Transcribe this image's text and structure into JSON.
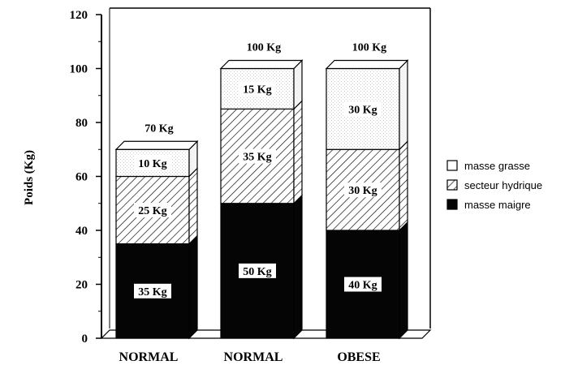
{
  "chart_data": {
    "type": "bar",
    "stacked": true,
    "ylabel": "Poids (Kg)",
    "ylim": [
      0,
      120
    ],
    "yticks": [
      0,
      20,
      40,
      60,
      80,
      100,
      120
    ],
    "categories": [
      "NORMAL",
      "NORMAL",
      "OBESE"
    ],
    "totals": [
      "70 Kg",
      "100 Kg",
      "100 Kg"
    ],
    "series": [
      {
        "name": "masse maigre",
        "values": [
          35,
          50,
          40
        ],
        "labels": [
          "35 Kg",
          "50 Kg",
          "40 Kg"
        ],
        "pattern": "solid-black"
      },
      {
        "name": "secteur hydrique",
        "values": [
          25,
          35,
          30
        ],
        "labels": [
          "25 Kg",
          "35 Kg",
          "30 Kg"
        ],
        "pattern": "diagonal-hatch"
      },
      {
        "name": "masse grasse",
        "values": [
          10,
          15,
          30
        ],
        "labels": [
          "10 Kg",
          "15 Kg",
          "30 Kg"
        ],
        "pattern": "white-stipple"
      }
    ],
    "legend_order": [
      "masse grasse",
      "secteur hydrique",
      "masse maigre"
    ],
    "legend_position": "right",
    "grid": false,
    "three_d": true
  }
}
